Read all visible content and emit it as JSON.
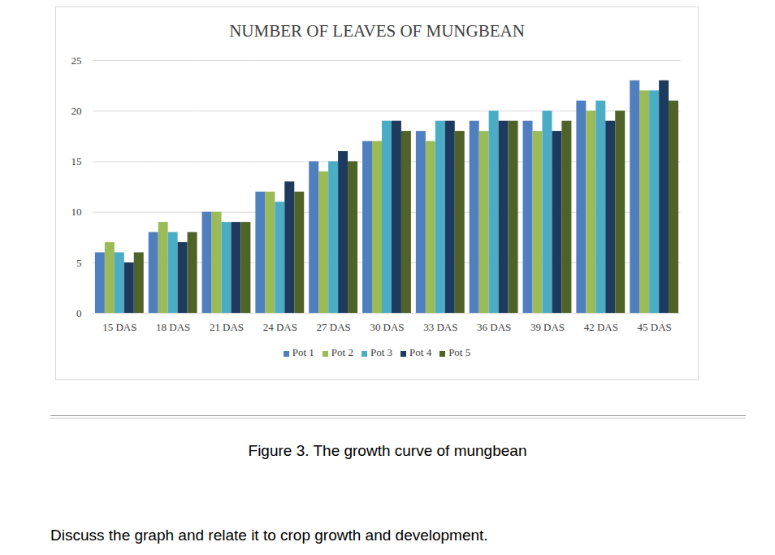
{
  "chart_data": {
    "type": "bar",
    "title": "NUMBER OF LEAVES OF MUNGBEAN",
    "categories": [
      "15 DAS",
      "18 DAS",
      "21 DAS",
      "24 DAS",
      "27 DAS",
      "30 DAS",
      "33 DAS",
      "36 DAS",
      "39 DAS",
      "42 DAS",
      "45 DAS"
    ],
    "series": [
      {
        "name": "Pot 1",
        "color": "#4f7fbf",
        "values": [
          6,
          8,
          10,
          12,
          15,
          17,
          18,
          19,
          19,
          21,
          23
        ]
      },
      {
        "name": "Pot 2",
        "color": "#9bbb59",
        "values": [
          7,
          9,
          10,
          12,
          14,
          17,
          17,
          18,
          18,
          20,
          22
        ]
      },
      {
        "name": "Pot 3",
        "color": "#4bacc6",
        "values": [
          6,
          8,
          9,
          11,
          15,
          19,
          19,
          20,
          20,
          21,
          22
        ]
      },
      {
        "name": "Pot 4",
        "color": "#1f3a5f",
        "values": [
          5,
          7,
          9,
          13,
          16,
          19,
          19,
          19,
          18,
          19,
          23
        ]
      },
      {
        "name": "Pot 5",
        "color": "#4f6228",
        "values": [
          6,
          8,
          9,
          12,
          15,
          18,
          18,
          19,
          19,
          20,
          21
        ]
      }
    ],
    "ylim": [
      0,
      25
    ],
    "yticks": [
      0,
      5,
      10,
      15,
      20,
      25
    ],
    "grid": true,
    "legend": "bottom"
  },
  "caption": "Figure 3. The growth curve of mungbean",
  "question": "Discuss the graph and relate it to crop growth and development."
}
